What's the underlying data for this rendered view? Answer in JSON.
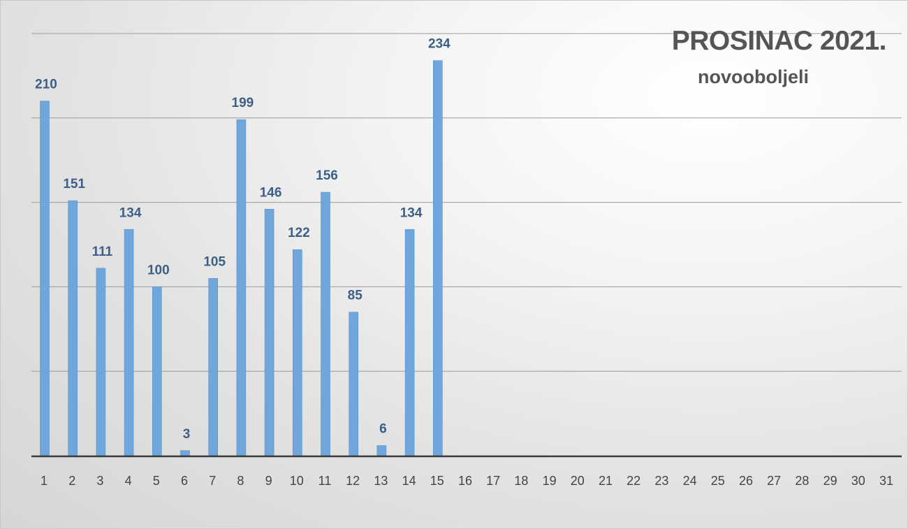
{
  "chart_data": {
    "type": "bar",
    "title": "PROSINAC 2021.",
    "subtitle": "novooboljeli",
    "categories": [
      "1",
      "2",
      "3",
      "4",
      "5",
      "6",
      "7",
      "8",
      "9",
      "10",
      "11",
      "12",
      "13",
      "14",
      "15",
      "16",
      "17",
      "18",
      "19",
      "20",
      "21",
      "22",
      "23",
      "24",
      "25",
      "26",
      "27",
      "28",
      "29",
      "30",
      "31"
    ],
    "values": [
      210,
      151,
      111,
      134,
      100,
      3,
      105,
      199,
      146,
      122,
      156,
      85,
      6,
      134,
      234,
      null,
      null,
      null,
      null,
      null,
      null,
      null,
      null,
      null,
      null,
      null,
      null,
      null,
      null,
      null,
      null
    ],
    "xlabel": "",
    "ylabel": "",
    "ylim": [
      0,
      250
    ],
    "grid": true,
    "legend": "none",
    "colors": {
      "bar": "#6fa7dc",
      "label": "#3d5f86",
      "axis": "#3a3a3a",
      "grid": "#9a9a9a",
      "tick": "#444444",
      "title": "#555555"
    }
  }
}
